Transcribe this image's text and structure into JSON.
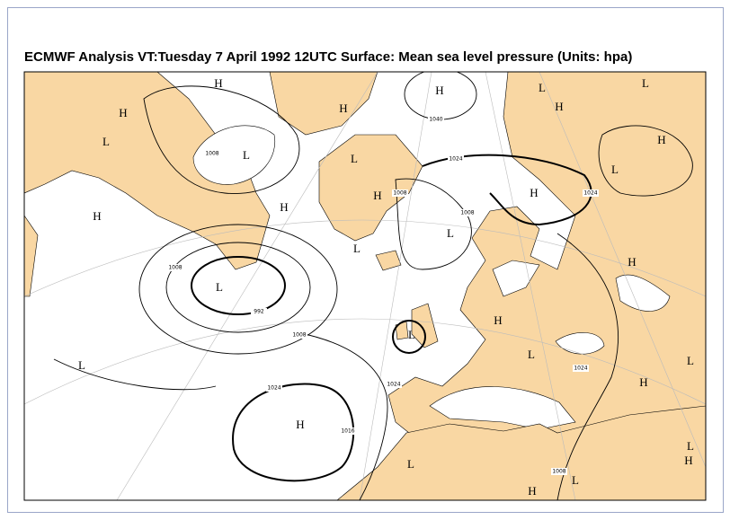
{
  "header": {
    "title": "ECMWF  Analysis VT:Tuesday 7 April 1992 12UTC Surface: Mean sea level pressure (Units: hpa)"
  },
  "map": {
    "centers": [
      "H",
      "H",
      "L",
      "H",
      "H",
      "L",
      "H",
      "L",
      "H",
      "L",
      "L",
      "L",
      "H",
      "H",
      "H",
      "H",
      "L",
      "L",
      "L",
      "H",
      "H",
      "L",
      "L",
      "H",
      "L",
      "L",
      "H",
      "L",
      "L",
      "H",
      "L",
      "H"
    ],
    "isobar_labels": [
      "1040",
      "1024",
      "1008",
      "1024",
      "1008",
      "1008",
      "1008",
      "992",
      "1008",
      "1024",
      "1024",
      "1016",
      "1024",
      "1008"
    ]
  }
}
